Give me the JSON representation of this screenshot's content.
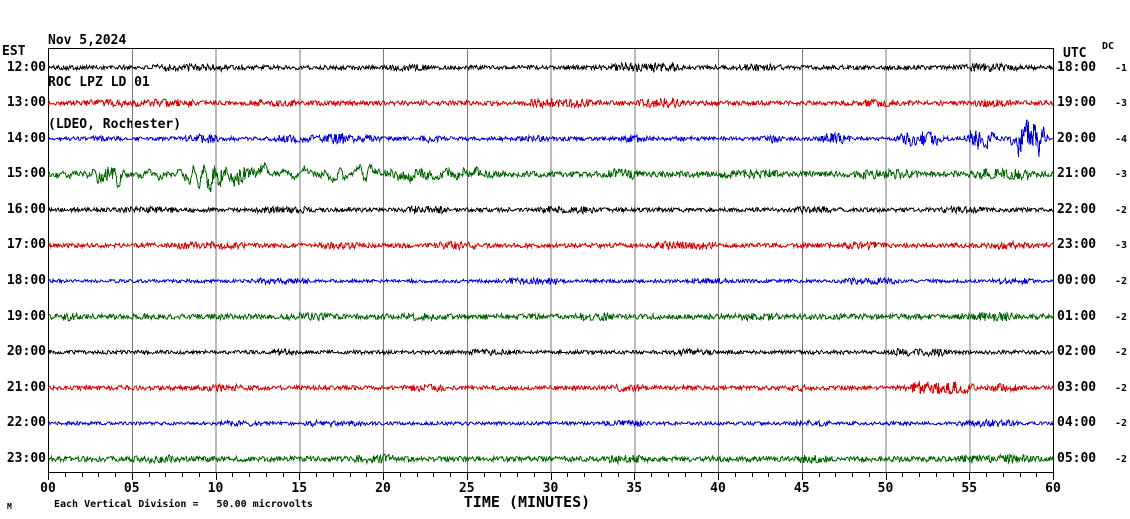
{
  "header": {
    "date": "Nov 5,2024",
    "station": "ROC LPZ LD 01",
    "network": "(LDEO, Rochester)"
  },
  "left_axis": {
    "label": "EST"
  },
  "right_axis": {
    "label": "UTC",
    "dc_label": "DC"
  },
  "footer": {
    "watermark": "M",
    "scale_note": "Each Vertical Division =   50.00 microvolts",
    "xaxis_title": "TIME (MINUTES)"
  },
  "chart_data": {
    "type": "line",
    "title": "ROC LPZ LD 01 helicorder, Nov 5,2024 (LDEO, Rochester)",
    "xlabel": "TIME (MINUTES)",
    "x_range": [
      0,
      60
    ],
    "x_tick_labels": [
      "00",
      "05",
      "10",
      "15",
      "20",
      "25",
      "30",
      "35",
      "40",
      "45",
      "50",
      "55",
      "60"
    ],
    "major_tick_minutes": 5,
    "minor_tick_minutes": 1,
    "vertical_division_microvolts": 50.0,
    "grid": {
      "gridline_color": "#7a7a7a",
      "border_color": "#000000"
    },
    "trace_colors": {
      "black": "#000000",
      "red": "#dd0000",
      "blue": "#0000dd",
      "green": "#006600"
    },
    "rows": [
      {
        "est": "12:00",
        "utc": "18:00",
        "dc": "-1",
        "color": "#000000",
        "seed": 101,
        "base_amp": 2.2,
        "events": [
          [
            6,
            12,
            1.5,
            "hf"
          ],
          [
            20,
            23,
            1.2,
            "hf"
          ],
          [
            33.5,
            38,
            2.5,
            "hf"
          ],
          [
            41,
            44,
            1.5,
            "hf"
          ],
          [
            54,
            58,
            2,
            "hf"
          ]
        ]
      },
      {
        "est": "13:00",
        "utc": "19:00",
        "dc": "-3",
        "color": "#dd0000",
        "seed": 202,
        "base_amp": 2.4,
        "events": [
          [
            2,
            9,
            1.5,
            "hf"
          ],
          [
            12,
            15,
            1.5,
            "hf"
          ],
          [
            28.5,
            33,
            2.2,
            "hf"
          ],
          [
            35,
            38,
            2.5,
            "hf"
          ],
          [
            48,
            51,
            1.5,
            "hf"
          ],
          [
            55,
            58,
            1.5,
            "hf"
          ]
        ]
      },
      {
        "est": "14:00",
        "utc": "20:00",
        "dc": "-4",
        "color": "#0000dd",
        "seed": 303,
        "base_amp": 2.0,
        "events": [
          [
            2.5,
            3.6,
            2,
            "hf"
          ],
          [
            8,
            10.5,
            2.5,
            "hf"
          ],
          [
            13,
            20,
            1.8,
            "hf"
          ],
          [
            16.5,
            18,
            3,
            "hf"
          ],
          [
            22,
            24,
            2,
            "hf"
          ],
          [
            28,
            30,
            1.5,
            "hf"
          ],
          [
            34,
            36,
            2,
            "hf"
          ],
          [
            42.5,
            44,
            2.5,
            "hf"
          ],
          [
            46,
            48,
            4,
            "hf"
          ],
          [
            50.5,
            53.5,
            6,
            "hf"
          ],
          [
            50.5,
            53.5,
            3,
            "lf"
          ],
          [
            54.5,
            56.8,
            7,
            "hf"
          ],
          [
            54.5,
            56.8,
            3,
            "lf"
          ],
          [
            57.3,
            59.8,
            13,
            "hf"
          ],
          [
            57.3,
            59.8,
            9,
            "lf"
          ]
        ]
      },
      {
        "est": "15:00",
        "utc": "21:00",
        "dc": "-3",
        "color": "#006600",
        "seed": 404,
        "base_amp": 3.0,
        "events": [
          [
            0,
            2,
            3,
            "lf"
          ],
          [
            2,
            4.8,
            14,
            "lf"
          ],
          [
            2.5,
            4.5,
            4,
            "hf"
          ],
          [
            4.8,
            7.5,
            6,
            "lf"
          ],
          [
            7.5,
            13.5,
            13,
            "lf"
          ],
          [
            8,
            13,
            5,
            "hf"
          ],
          [
            13.5,
            16,
            6,
            "lf"
          ],
          [
            16,
            20,
            7,
            "lf"
          ],
          [
            20,
            27,
            4,
            "lf"
          ],
          [
            20,
            27,
            1.5,
            "hf"
          ],
          [
            33,
            35.5,
            2.5,
            "hf"
          ],
          [
            40,
            44,
            1.5,
            "hf"
          ],
          [
            48,
            52,
            2,
            "hf"
          ],
          [
            55,
            59,
            2.5,
            "hf"
          ]
        ]
      },
      {
        "est": "16:00",
        "utc": "22:00",
        "dc": "-2",
        "color": "#000000",
        "seed": 505,
        "base_amp": 2.1,
        "events": [
          [
            4,
            8,
            1.2,
            "hf"
          ],
          [
            12,
            16,
            1.5,
            "hf"
          ],
          [
            21,
            24,
            1.8,
            "hf"
          ],
          [
            29,
            33,
            1.8,
            "hf"
          ],
          [
            44,
            47,
            1.5,
            "hf"
          ],
          [
            53,
            56,
            1.5,
            "hf"
          ]
        ]
      },
      {
        "est": "17:00",
        "utc": "23:00",
        "dc": "-3",
        "color": "#dd0000",
        "seed": 606,
        "base_amp": 2.3,
        "events": [
          [
            7,
            12,
            1.5,
            "hf"
          ],
          [
            16,
            19,
            1.5,
            "hf"
          ],
          [
            23,
            26,
            2,
            "hf"
          ],
          [
            36,
            40,
            2,
            "hf"
          ],
          [
            47,
            50,
            1.8,
            "hf"
          ],
          [
            56,
            59,
            1.5,
            "hf"
          ]
        ]
      },
      {
        "est": "18:00",
        "utc": "00:00",
        "dc": "-2",
        "color": "#0000dd",
        "seed": 707,
        "base_amp": 1.7,
        "events": [
          [
            12,
            16,
            1.5,
            "hf"
          ],
          [
            27,
            31,
            1.5,
            "hf"
          ],
          [
            38,
            41,
            1.2,
            "hf"
          ],
          [
            47,
            51,
            1.5,
            "hf"
          ],
          [
            56,
            59,
            1.5,
            "hf"
          ]
        ]
      },
      {
        "est": "19:00",
        "utc": "01:00",
        "dc": "-2",
        "color": "#006600",
        "seed": 808,
        "base_amp": 2.7,
        "events": [
          [
            0,
            2,
            1.8,
            "hf"
          ],
          [
            14,
            17,
            1.5,
            "hf"
          ],
          [
            21,
            24,
            1.5,
            "hf"
          ],
          [
            31,
            34,
            1.5,
            "hf"
          ],
          [
            41,
            44,
            1.5,
            "hf"
          ],
          [
            55,
            58,
            2,
            "hf"
          ]
        ]
      },
      {
        "est": "20:00",
        "utc": "02:00",
        "dc": "-2",
        "color": "#000000",
        "seed": 909,
        "base_amp": 1.9,
        "events": [
          [
            13,
            15,
            1.5,
            "hf"
          ],
          [
            25,
            28,
            1.5,
            "hf"
          ],
          [
            37,
            40,
            1.5,
            "hf"
          ],
          [
            50,
            54,
            2,
            "hf"
          ]
        ]
      },
      {
        "est": "21:00",
        "utc": "03:00",
        "dc": "-2",
        "color": "#dd0000",
        "seed": 1010,
        "base_amp": 2.2,
        "events": [
          [
            9,
            12,
            1.5,
            "hf"
          ],
          [
            21,
            24,
            1.5,
            "hf"
          ],
          [
            33,
            36,
            1.5,
            "hf"
          ],
          [
            44,
            46,
            1.5,
            "hf"
          ],
          [
            51,
            55.5,
            4,
            "hf"
          ],
          [
            56,
            58,
            2.5,
            "hf"
          ]
        ]
      },
      {
        "est": "22:00",
        "utc": "04:00",
        "dc": "-2",
        "color": "#0000dd",
        "seed": 1111,
        "base_amp": 1.7,
        "events": [
          [
            10,
            13,
            1.2,
            "hf"
          ],
          [
            15,
            19,
            1.5,
            "hf"
          ],
          [
            33,
            36,
            1.5,
            "hf"
          ],
          [
            44,
            47,
            1.5,
            "hf"
          ],
          [
            54,
            58,
            2,
            "hf"
          ]
        ]
      },
      {
        "est": "23:00",
        "utc": "05:00",
        "dc": "-2",
        "color": "#006600",
        "seed": 1212,
        "base_amp": 2.7,
        "events": [
          [
            5,
            8,
            1.5,
            "hf"
          ],
          [
            18,
            21,
            2,
            "hf"
          ],
          [
            33,
            36,
            1.5,
            "hf"
          ],
          [
            44,
            47,
            1.5,
            "hf"
          ],
          [
            54,
            59,
            2,
            "hf"
          ]
        ]
      }
    ]
  }
}
